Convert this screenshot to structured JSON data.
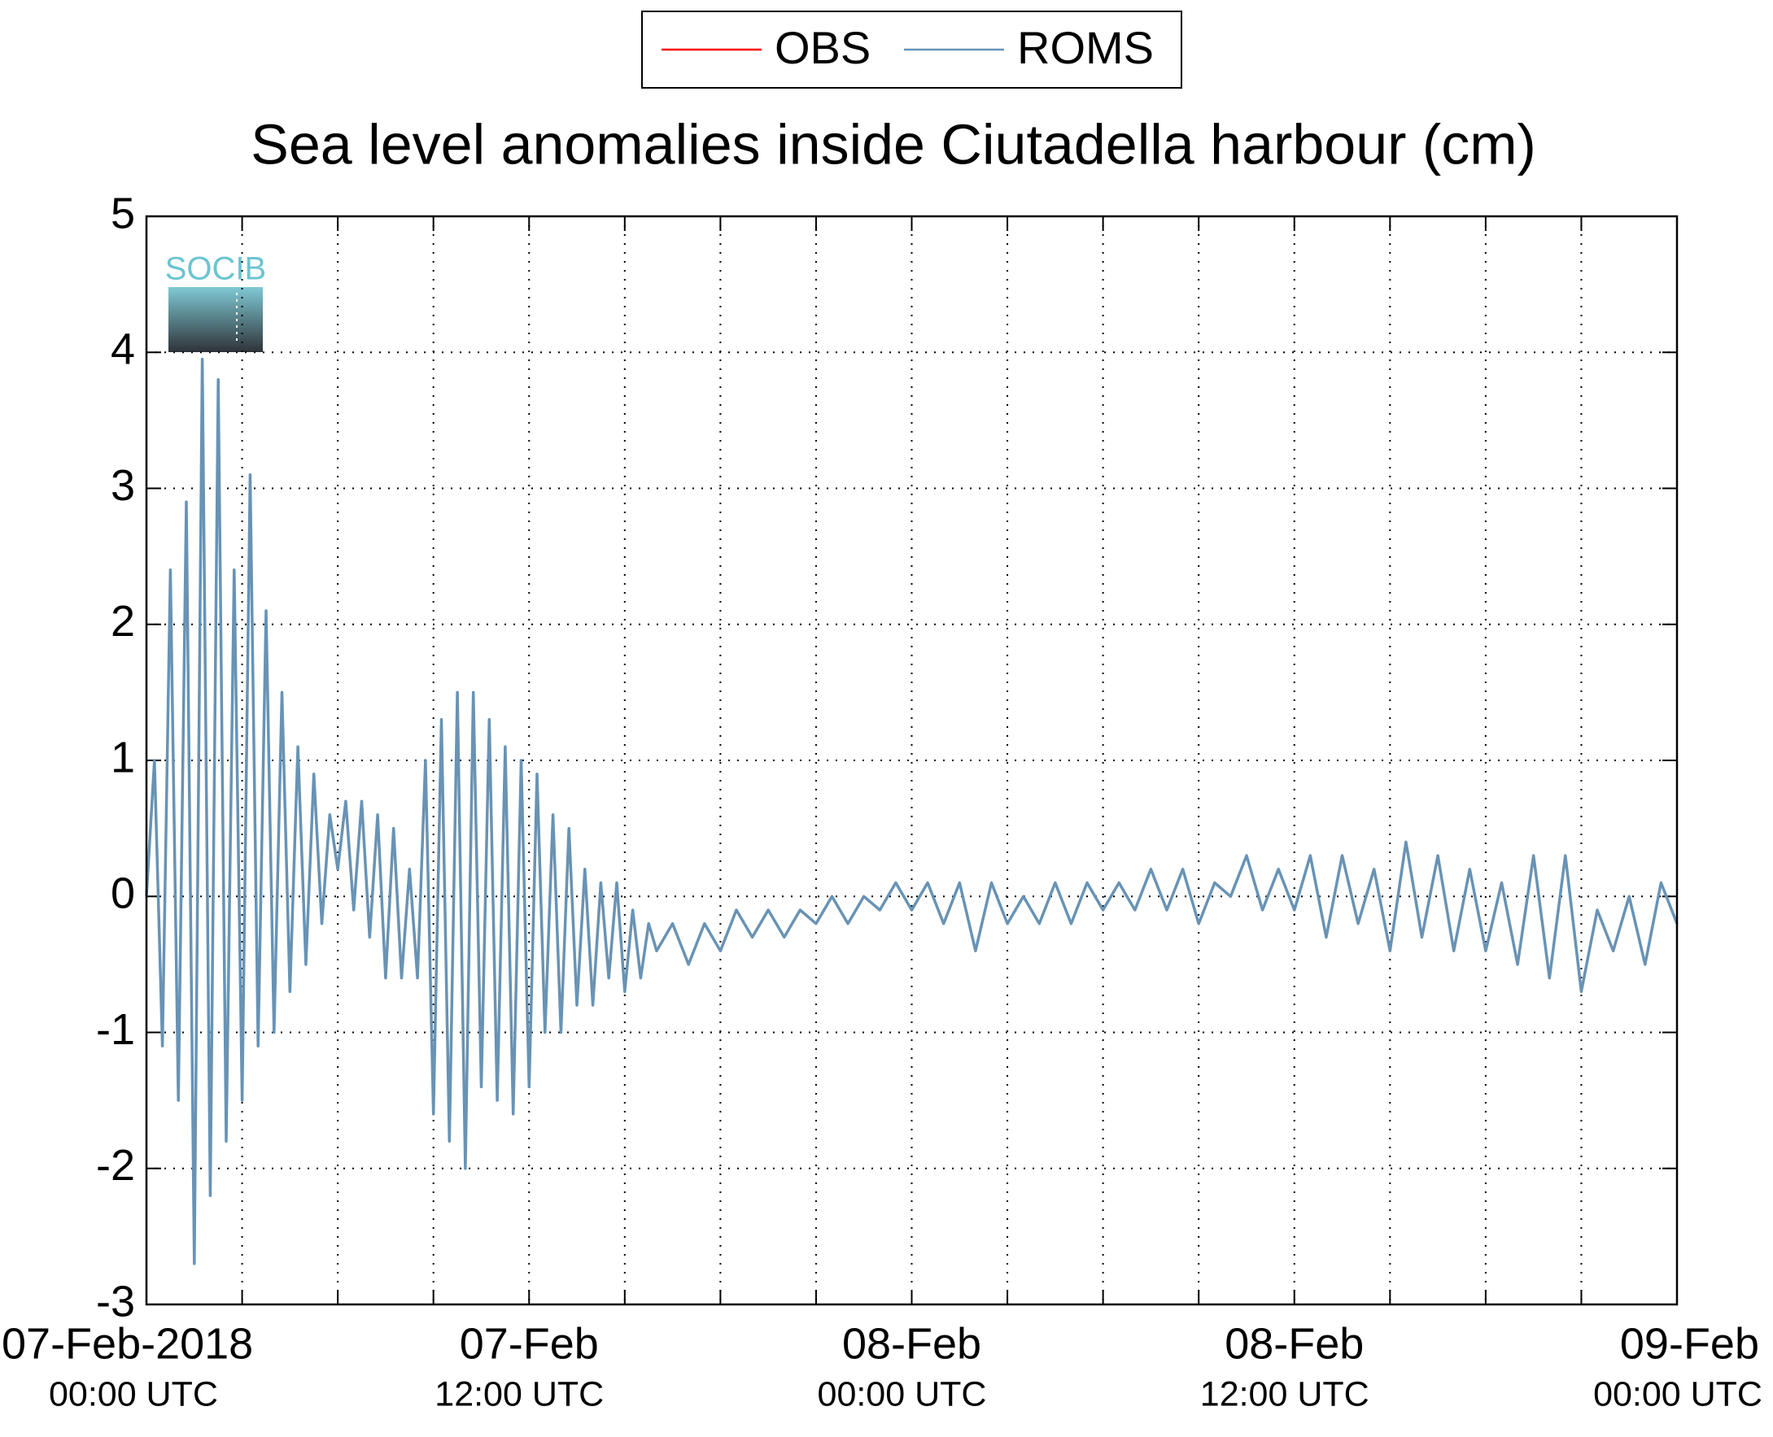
{
  "logo": "SOCIB",
  "chart_data": {
    "type": "line",
    "title": "Sea level anomalies inside Ciutadella harbour (cm)",
    "legend": "top",
    "grid": true,
    "ylim": [
      -3,
      5
    ],
    "yticks": [
      -3,
      -2,
      -1,
      0,
      1,
      2,
      3,
      4,
      5
    ],
    "xlim": [
      "2018-02-07 00:00",
      "2018-02-09 00:00"
    ],
    "xticks": [
      {
        "value": "2018-02-07 00:00",
        "label": [
          "07-Feb-2018",
          "00:00 UTC"
        ]
      },
      {
        "value": "2018-02-07 03:00",
        "label": null
      },
      {
        "value": "2018-02-07 06:00",
        "label": null
      },
      {
        "value": "2018-02-07 09:00",
        "label": null
      },
      {
        "value": "2018-02-07 12:00",
        "label": [
          "07-Feb",
          "12:00 UTC"
        ]
      },
      {
        "value": "2018-02-07 15:00",
        "label": null
      },
      {
        "value": "2018-02-07 18:00",
        "label": null
      },
      {
        "value": "2018-02-07 21:00",
        "label": null
      },
      {
        "value": "2018-02-08 00:00",
        "label": [
          "08-Feb",
          "00:00 UTC"
        ]
      },
      {
        "value": "2018-02-08 03:00",
        "label": null
      },
      {
        "value": "2018-02-08 06:00",
        "label": null
      },
      {
        "value": "2018-02-08 09:00",
        "label": null
      },
      {
        "value": "2018-02-08 12:00",
        "label": [
          "08-Feb",
          "12:00 UTC"
        ]
      },
      {
        "value": "2018-02-08 15:00",
        "label": null
      },
      {
        "value": "2018-02-08 18:00",
        "label": null
      },
      {
        "value": "2018-02-08 21:00",
        "label": null
      },
      {
        "value": "2018-02-09 00:00",
        "label": [
          "09-Feb",
          "00:00 UTC"
        ]
      }
    ],
    "x": [
      "2018-02-07 00:00",
      "2018-02-07 00:15",
      "2018-02-07 00:30",
      "2018-02-07 00:45",
      "2018-02-07 01:00",
      "2018-02-07 01:15",
      "2018-02-07 01:30",
      "2018-02-07 01:45",
      "2018-02-07 02:00",
      "2018-02-07 02:15",
      "2018-02-07 02:30",
      "2018-02-07 02:45",
      "2018-02-07 03:00",
      "2018-02-07 03:15",
      "2018-02-07 03:30",
      "2018-02-07 03:45",
      "2018-02-07 04:00",
      "2018-02-07 04:15",
      "2018-02-07 04:30",
      "2018-02-07 04:45",
      "2018-02-07 05:00",
      "2018-02-07 05:15",
      "2018-02-07 05:30",
      "2018-02-07 05:45",
      "2018-02-07 06:00",
      "2018-02-07 06:15",
      "2018-02-07 06:30",
      "2018-02-07 06:45",
      "2018-02-07 07:00",
      "2018-02-07 07:15",
      "2018-02-07 07:30",
      "2018-02-07 07:45",
      "2018-02-07 08:00",
      "2018-02-07 08:15",
      "2018-02-07 08:30",
      "2018-02-07 08:45",
      "2018-02-07 09:00",
      "2018-02-07 09:15",
      "2018-02-07 09:30",
      "2018-02-07 09:45",
      "2018-02-07 10:00",
      "2018-02-07 10:15",
      "2018-02-07 10:30",
      "2018-02-07 10:45",
      "2018-02-07 11:00",
      "2018-02-07 11:15",
      "2018-02-07 11:30",
      "2018-02-07 11:45",
      "2018-02-07 12:00",
      "2018-02-07 12:15",
      "2018-02-07 12:30",
      "2018-02-07 12:45",
      "2018-02-07 13:00",
      "2018-02-07 13:15",
      "2018-02-07 13:30",
      "2018-02-07 13:45",
      "2018-02-07 14:00",
      "2018-02-07 14:15",
      "2018-02-07 14:30",
      "2018-02-07 14:45",
      "2018-02-07 15:00",
      "2018-02-07 15:15",
      "2018-02-07 15:30",
      "2018-02-07 15:45",
      "2018-02-07 16:00",
      "2018-02-07 16:30",
      "2018-02-07 17:00",
      "2018-02-07 17:30",
      "2018-02-07 18:00",
      "2018-02-07 18:30",
      "2018-02-07 19:00",
      "2018-02-07 19:30",
      "2018-02-07 20:00",
      "2018-02-07 20:30",
      "2018-02-07 21:00",
      "2018-02-07 21:30",
      "2018-02-07 22:00",
      "2018-02-07 22:30",
      "2018-02-07 23:00",
      "2018-02-07 23:30",
      "2018-02-08 00:00",
      "2018-02-08 00:30",
      "2018-02-08 01:00",
      "2018-02-08 01:30",
      "2018-02-08 02:00",
      "2018-02-08 02:30",
      "2018-02-08 03:00",
      "2018-02-08 03:30",
      "2018-02-08 04:00",
      "2018-02-08 04:30",
      "2018-02-08 05:00",
      "2018-02-08 05:30",
      "2018-02-08 06:00",
      "2018-02-08 06:30",
      "2018-02-08 07:00",
      "2018-02-08 07:30",
      "2018-02-08 08:00",
      "2018-02-08 08:30",
      "2018-02-08 09:00",
      "2018-02-08 09:30",
      "2018-02-08 10:00",
      "2018-02-08 10:30",
      "2018-02-08 11:00",
      "2018-02-08 11:30",
      "2018-02-08 12:00",
      "2018-02-08 12:30",
      "2018-02-08 13:00",
      "2018-02-08 13:30",
      "2018-02-08 14:00",
      "2018-02-08 14:30",
      "2018-02-08 15:00",
      "2018-02-08 15:30",
      "2018-02-08 16:00",
      "2018-02-08 16:30",
      "2018-02-08 17:00",
      "2018-02-08 17:30",
      "2018-02-08 18:00",
      "2018-02-08 18:30",
      "2018-02-08 19:00",
      "2018-02-08 19:30",
      "2018-02-08 20:00",
      "2018-02-08 20:30",
      "2018-02-08 21:00",
      "2018-02-08 21:30",
      "2018-02-08 22:00",
      "2018-02-08 22:30",
      "2018-02-08 23:00",
      "2018-02-08 23:30",
      "2018-02-09 00:00"
    ],
    "series": [
      {
        "name": "OBS",
        "color": "#ff0000",
        "values": [
          null,
          null,
          null,
          null,
          null,
          null,
          null,
          null,
          null,
          null,
          null,
          null,
          null,
          null,
          null,
          null,
          null,
          null,
          null,
          null,
          null,
          null,
          null,
          null,
          null,
          null,
          null,
          null,
          null,
          null,
          null,
          null,
          null,
          null,
          null,
          null,
          null,
          null,
          null,
          null,
          null,
          null,
          null,
          null,
          null,
          null,
          null,
          null,
          null,
          null,
          null,
          null,
          null,
          null,
          null,
          null,
          null,
          null,
          null,
          null,
          null,
          null,
          null,
          null,
          null,
          null,
          null,
          null,
          null,
          null,
          null,
          null,
          null,
          null,
          null,
          null,
          null,
          null,
          null,
          null,
          null,
          null,
          null,
          null,
          null,
          null,
          null,
          null,
          null,
          null,
          null,
          null,
          null,
          null,
          null,
          null,
          null,
          null,
          null,
          null,
          null,
          null,
          null,
          null,
          null,
          null,
          null,
          null,
          null,
          null,
          null,
          null,
          null,
          null,
          null,
          null,
          null,
          null,
          null,
          null,
          null,
          null,
          null,
          null,
          null,
          null,
          null,
          null,
          null
        ]
      },
      {
        "name": "ROMS",
        "color": "#6893b5",
        "values": [
          0,
          1.0,
          -1.1,
          2.4,
          -1.5,
          2.9,
          -2.7,
          3.95,
          -2.2,
          3.8,
          -1.8,
          2.4,
          -1.5,
          3.1,
          -1.1,
          2.1,
          -1.0,
          1.5,
          -0.7,
          1.1,
          -0.5,
          0.9,
          -0.2,
          0.6,
          0.2,
          0.7,
          -0.1,
          0.7,
          -0.3,
          0.6,
          -0.6,
          0.5,
          -0.6,
          0.2,
          -0.6,
          1.0,
          -1.6,
          1.3,
          -1.8,
          1.5,
          -2.0,
          1.5,
          -1.4,
          1.3,
          -1.5,
          1.1,
          -1.6,
          1.0,
          -1.4,
          0.9,
          -1.0,
          0.6,
          -1.0,
          0.5,
          -0.8,
          0.2,
          -0.8,
          0.1,
          -0.6,
          0.1,
          -0.7,
          -0.1,
          -0.6,
          -0.2,
          -0.4,
          -0.2,
          -0.5,
          -0.2,
          -0.4,
          -0.1,
          -0.3,
          -0.1,
          -0.3,
          -0.1,
          -0.2,
          0.0,
          -0.2,
          0.0,
          -0.1,
          0.1,
          -0.1,
          0.1,
          -0.2,
          0.1,
          -0.4,
          0.1,
          -0.2,
          0.0,
          -0.2,
          0.1,
          -0.2,
          0.1,
          -0.1,
          0.1,
          -0.1,
          0.2,
          -0.1,
          0.2,
          -0.2,
          0.1,
          0.0,
          0.3,
          -0.1,
          0.2,
          -0.1,
          0.3,
          -0.3,
          0.3,
          -0.2,
          0.2,
          -0.4,
          0.4,
          -0.3,
          0.3,
          -0.4,
          0.2,
          -0.4,
          0.1,
          -0.5,
          0.3,
          -0.6,
          0.3,
          -0.7,
          -0.1,
          -0.4,
          0.0,
          -0.5,
          0.1,
          -0.2
        ]
      }
    ]
  }
}
